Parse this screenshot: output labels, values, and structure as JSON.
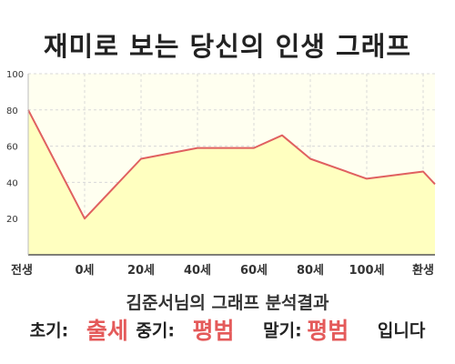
{
  "title": "재미로 보는 당신의 인생 그래프",
  "subtitle": "김준서님의 그래프 분석결과",
  "result": {
    "early_label": "초기:",
    "early_value": "출세",
    "mid_label": "중기:",
    "mid_value": "평범",
    "late_label": "말기:",
    "late_value": "평범",
    "suffix": "입니다"
  },
  "colors": {
    "line": "#e06060",
    "fill": "#ffffc0",
    "plot_bg": "#fffff0",
    "highlight": "#e45a5a"
  },
  "chart_data": {
    "type": "area",
    "x": [
      -1,
      0,
      1,
      2,
      3,
      3.5,
      4,
      5,
      6,
      7,
      8
    ],
    "values": [
      80,
      20,
      53,
      59,
      59,
      66,
      53,
      42,
      46,
      39,
      39
    ],
    "x_positions_note_free": true,
    "xticks": [
      {
        "pos": -1,
        "label": "전생"
      },
      {
        "pos": 0,
        "label": "0세"
      },
      {
        "pos": 1,
        "label": "20세"
      },
      {
        "pos": 2,
        "label": "40세"
      },
      {
        "pos": 3,
        "label": "60세"
      },
      {
        "pos": 4,
        "label": "80세"
      },
      {
        "pos": 5,
        "label": "100세"
      },
      {
        "pos": 6,
        "label": "환생"
      }
    ],
    "yticks": [
      20,
      40,
      60,
      80,
      100
    ],
    "ylim": [
      0,
      100
    ],
    "grid": true,
    "xlabel": "",
    "ylabel": ""
  }
}
